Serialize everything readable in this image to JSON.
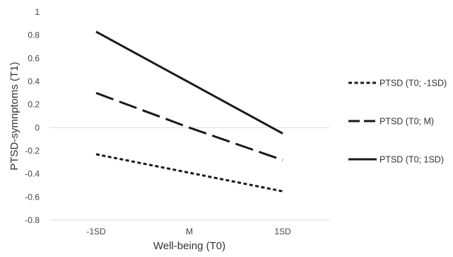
{
  "chart_data": {
    "type": "line",
    "title": "",
    "xlabel": "Well-being (T0)",
    "ylabel": "PTSD-symnptoms (T1)",
    "categories": [
      "-1SD",
      "M",
      "1SD"
    ],
    "ylim": [
      -0.8,
      1
    ],
    "yticks": [
      {
        "value": 1,
        "label": "1"
      },
      {
        "value": 0.8,
        "label": "0.8"
      },
      {
        "value": 0.6,
        "label": "0.6"
      },
      {
        "value": 0.4,
        "label": "0.4"
      },
      {
        "value": 0.2,
        "label": "0.2"
      },
      {
        "value": 0,
        "label": "0"
      },
      {
        "value": -0.2,
        "label": "-0.2"
      },
      {
        "value": -0.4,
        "label": "-0.4"
      },
      {
        "value": -0.6,
        "label": "-0.6"
      },
      {
        "value": -0.8,
        "label": "-0.8"
      }
    ],
    "grid": false,
    "legend_position": "right",
    "series": [
      {
        "name": "PTSD (T0; -1SD)",
        "values": [
          -0.23,
          -0.39,
          -0.55
        ],
        "style": "dotted",
        "color": "#1a1a1a"
      },
      {
        "name": "PTSD (T0; M)",
        "values": [
          0.3,
          0.0,
          -0.28
        ],
        "style": "long-dash",
        "color": "#1a1a1a"
      },
      {
        "name": "PTSD (T0; 1SD)",
        "values": [
          0.83,
          0.39,
          -0.05
        ],
        "style": "solid",
        "color": "#1a1a1a"
      }
    ]
  }
}
